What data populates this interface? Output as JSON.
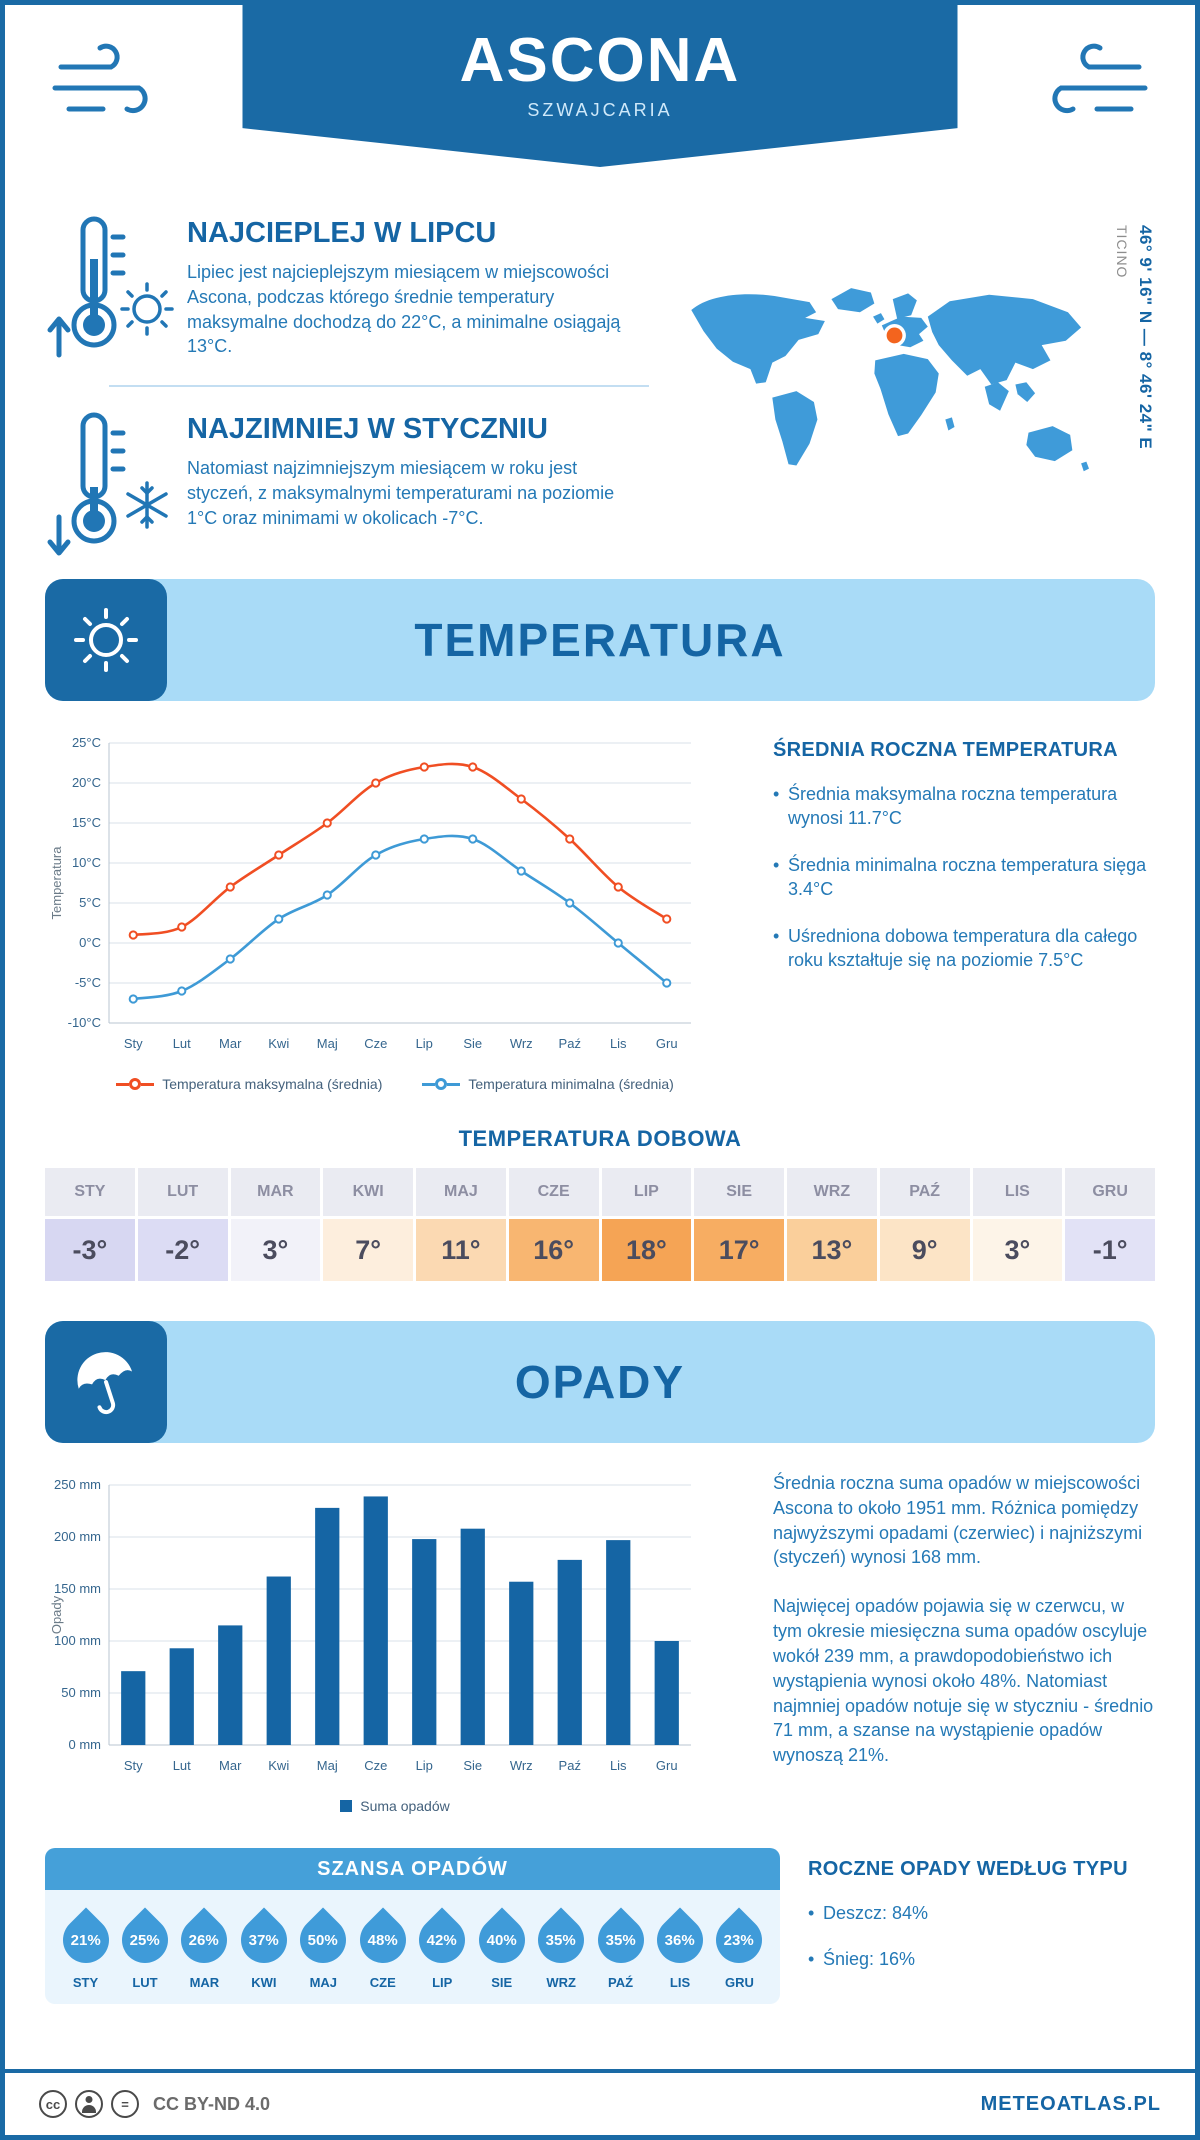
{
  "page": {
    "accent_color": "#1a6aa5",
    "light_blue": "#a9dbf7",
    "body_text_color": "#2479b6",
    "footer_license": "CC BY-ND 4.0",
    "footer_brand": "METEOATLAS.PL"
  },
  "header": {
    "title": "ASCONA",
    "subtitle": "SZWAJCARIA"
  },
  "highlights": {
    "warm_title": "NAJCIEPLEJ W LIPCU",
    "warm_text": "Lipiec jest najcieplejszym miesiącem w miejscowości Ascona, podczas którego średnie temperatury maksymalne dochodzą do 22°C, a minimalne osiągają 13°C.",
    "cold_title": "NAJZIMNIEJ W STYCZNIU",
    "cold_text": "Natomiast najzimniejszym miesiącem w roku jest styczeń, z maksymalnymi temperaturami na poziomie 1°C oraz minimami w okolicach -7°C."
  },
  "map": {
    "region": "TICINO",
    "coordinates": "46° 9' 16\" N — 8° 46' 24\" E",
    "marker_color": "#f3641e",
    "land_color": "#3f9bd9"
  },
  "temperature_section": {
    "title": "TEMPERATURA",
    "summary_title": "ŚREDNIA ROCZNA TEMPERATURA",
    "bullets": [
      "Średnia maksymalna roczna temperatura wynosi 11.7°C",
      "Średnia minimalna roczna temperatura sięga 3.4°C",
      "Uśredniona dobowa temperatura dla całego roku kształtuje się na poziomie 7.5°C"
    ],
    "daily_title": "TEMPERATURA DOBOWA",
    "daily": {
      "months": [
        "STY",
        "LUT",
        "MAR",
        "KWI",
        "MAJ",
        "CZE",
        "LIP",
        "SIE",
        "WRZ",
        "PAŹ",
        "LIS",
        "GRU"
      ],
      "values": [
        "-3°",
        "-2°",
        "3°",
        "7°",
        "11°",
        "16°",
        "18°",
        "17°",
        "13°",
        "9°",
        "3°",
        "-1°"
      ],
      "cell_colors": [
        "#d7d7f2",
        "#dcdcf4",
        "#f2f2f9",
        "#fdeedd",
        "#fbd9b2",
        "#f8b671",
        "#f5a455",
        "#f7ad62",
        "#facf9b",
        "#fce4c6",
        "#fdf4e8",
        "#e2e2f6"
      ]
    }
  },
  "precipitation_section": {
    "title": "OPADY",
    "paragraphs": [
      "Średnia roczna suma opadów w miejscowości Ascona to około 1951 mm. Różnica pomiędzy najwyższymi opadami (czerwiec) i najniższymi (styczeń) wynosi 168 mm.",
      "Najwięcej opadów pojawia się w czerwcu, w tym okresie miesięczna suma opadów oscyluje wokół 239 mm, a prawdopodobieństwo ich wystąpienia wynosi około 48%. Natomiast najmniej opadów notuje się w styczniu - średnio 71 mm, a szanse na wystąpienie opadów wynoszą 21%."
    ],
    "chance_title": "SZANSA OPADÓW",
    "chance": {
      "months": [
        "STY",
        "LUT",
        "MAR",
        "KWI",
        "MAJ",
        "CZE",
        "LIP",
        "SIE",
        "WRZ",
        "PAŹ",
        "LIS",
        "GRU"
      ],
      "values": [
        "21%",
        "25%",
        "26%",
        "37%",
        "50%",
        "48%",
        "42%",
        "40%",
        "35%",
        "35%",
        "36%",
        "23%"
      ],
      "drop_color": "#3f9bd9"
    },
    "type_title": "ROCZNE OPADY WEDŁUG TYPU",
    "type_bullets": [
      "Deszcz: 84%",
      "Śnieg: 16%"
    ]
  },
  "chart_data": [
    {
      "type": "line",
      "title": "Temperatura",
      "categories": [
        "Sty",
        "Lut",
        "Mar",
        "Kwi",
        "Maj",
        "Cze",
        "Lip",
        "Sie",
        "Wrz",
        "Paź",
        "Lis",
        "Gru"
      ],
      "series": [
        {
          "name": "Temperatura maksymalna (średnia)",
          "color": "#f04e23",
          "values": [
            1,
            2,
            7,
            11,
            15,
            20,
            22,
            22,
            18,
            13,
            7,
            3
          ]
        },
        {
          "name": "Temperatura minimalna (średnia)",
          "color": "#3e9ad6",
          "values": [
            -7,
            -6,
            -2,
            3,
            6,
            11,
            13,
            13,
            9,
            5,
            0,
            -5
          ]
        }
      ],
      "xlabel": "",
      "ylabel": "Temperatura",
      "ylim": [
        -10,
        25
      ],
      "ytick_step": 5,
      "ytick_suffix": "°C",
      "grid": true,
      "legend_position": "bottom"
    },
    {
      "type": "bar",
      "title": "Opady",
      "categories": [
        "Sty",
        "Lut",
        "Mar",
        "Kwi",
        "Maj",
        "Cze",
        "Lip",
        "Sie",
        "Wrz",
        "Paź",
        "Lis",
        "Gru"
      ],
      "series": [
        {
          "name": "Suma opadów",
          "color": "#1565a4",
          "values": [
            71,
            93,
            115,
            162,
            228,
            239,
            198,
            208,
            157,
            178,
            197,
            100
          ]
        }
      ],
      "xlabel": "",
      "ylabel": "Opady",
      "ylim": [
        0,
        250
      ],
      "ytick_step": 50,
      "ytick_suffix": " mm",
      "grid": true,
      "legend_position": "bottom"
    }
  ]
}
